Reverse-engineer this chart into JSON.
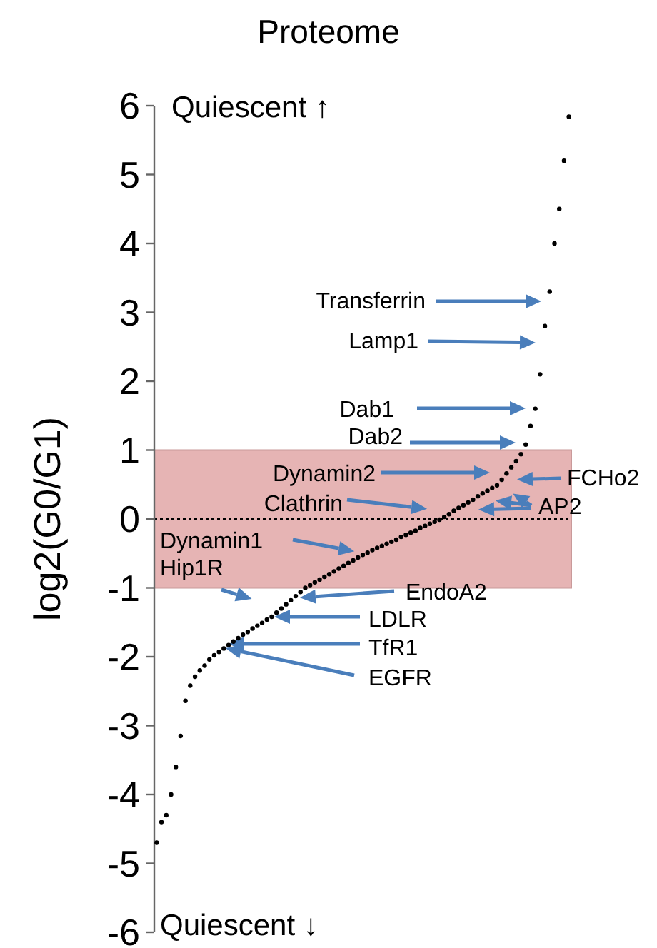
{
  "chart_data": {
    "type": "scatter",
    "title": "Proteome",
    "ylabel": "log2(G0/G1)",
    "categories": [
      null,
      null,
      null,
      null,
      null,
      null,
      null,
      null,
      null,
      null,
      null,
      null,
      null,
      null,
      null,
      null,
      null,
      null,
      null,
      null,
      null,
      null,
      null,
      null,
      null,
      null,
      null,
      null,
      null,
      null,
      null,
      null,
      null,
      null,
      null,
      null,
      null,
      null,
      null,
      null,
      null,
      null,
      null,
      null,
      null,
      null,
      null,
      null,
      null,
      null,
      null,
      null,
      null,
      null,
      null,
      null,
      null,
      null,
      null,
      null,
      null,
      null,
      null,
      null,
      null,
      null,
      null,
      null,
      null,
      null,
      null,
      null,
      null,
      null,
      null,
      null,
      null,
      null,
      null,
      null,
      null,
      null,
      null,
      null,
      null,
      null,
      null
    ],
    "series": [
      {
        "color": "#000000",
        "values": [
          -4.7,
          -4.4,
          -4.3,
          -4.0,
          -3.6,
          -3.15,
          -2.64,
          -2.42,
          -2.29,
          -2.2,
          -2.13,
          -2.04,
          -1.98,
          -1.93,
          -1.88,
          -1.83,
          -1.78,
          -1.73,
          -1.68,
          -1.64,
          -1.59,
          -1.55,
          -1.51,
          -1.46,
          -1.42,
          -1.36,
          -1.3,
          -1.24,
          -1.18,
          -1.12,
          -1.06,
          -1.0,
          -0.96,
          -0.92,
          -0.88,
          -0.84,
          -0.8,
          -0.76,
          -0.72,
          -0.68,
          -0.64,
          -0.6,
          -0.56,
          -0.52,
          -0.49,
          -0.45,
          -0.42,
          -0.39,
          -0.36,
          -0.33,
          -0.3,
          -0.26,
          -0.23,
          -0.2,
          -0.17,
          -0.13,
          -0.1,
          -0.07,
          -0.04,
          -0.01,
          0.03,
          0.07,
          0.12,
          0.16,
          0.2,
          0.24,
          0.28,
          0.33,
          0.37,
          0.41,
          0.45,
          0.49,
          0.57,
          0.66,
          0.75,
          0.84,
          0.94,
          1.08,
          1.35,
          1.6,
          2.1,
          2.8,
          3.3,
          4.0,
          4.5,
          5.2,
          5.84
        ]
      }
    ],
    "ylim": [
      -6,
      6
    ],
    "yticks": [
      -6,
      -5,
      -4,
      -3,
      -2,
      -1,
      0,
      1,
      2,
      3,
      4,
      5,
      6
    ],
    "grid": false,
    "marker": "circle",
    "bands": [
      {
        "axis": "y",
        "from": -1,
        "to": 1,
        "color": "#e6b4b4"
      }
    ],
    "ref_lines": [
      {
        "axis": "y",
        "value": 0,
        "line_style": "dotted",
        "color": "#000000"
      }
    ],
    "annotations": [
      "Quiescent ↑",
      "Quiescent ↓",
      "Transferrin",
      "Lamp1",
      "Dab1",
      "Dab2",
      "Dynamin2",
      "FCHo2",
      "AP2",
      "Clathrin",
      "Dynamin1",
      "Hip1R",
      "EndoA2",
      "LDLR",
      "TfR1",
      "EGFR"
    ]
  }
}
